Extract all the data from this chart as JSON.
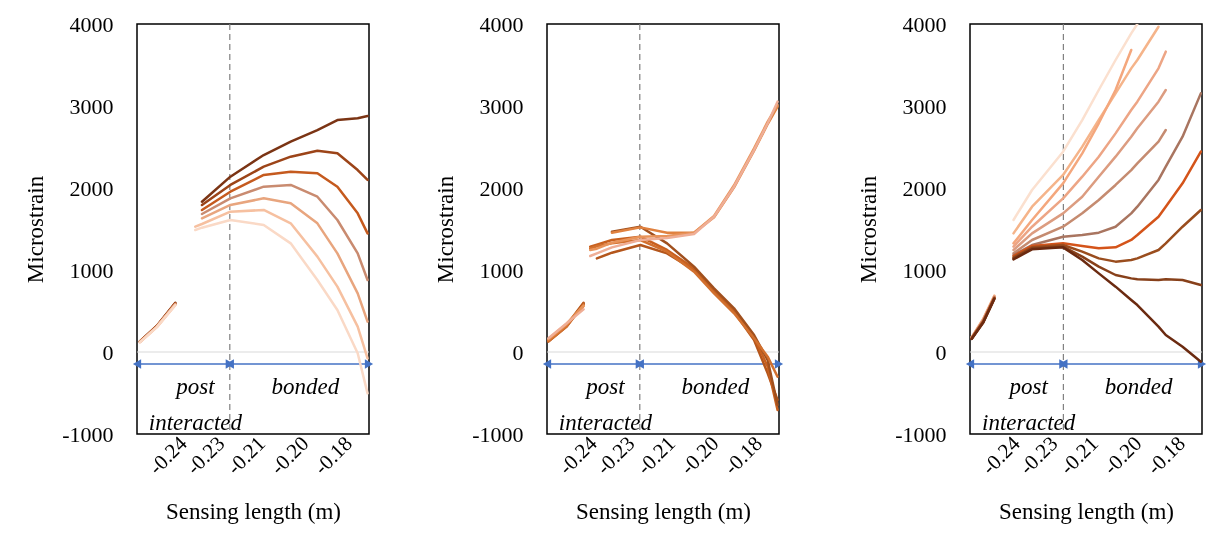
{
  "chart_data": [
    {
      "type": "line",
      "xlabel": "Sensing length (m)",
      "ylabel": "Microstrain",
      "line_style": "solid",
      "xlim": [
        -0.255,
        -0.175
      ],
      "xticks": [
        {
          "value": -0.239,
          "label": "-0.24"
        },
        {
          "value": -0.226,
          "label": "-0.23"
        },
        {
          "value": -0.212,
          "label": "-0.21"
        },
        {
          "value": -0.197,
          "label": "-0.20"
        },
        {
          "value": -0.182,
          "label": "-0.18"
        }
      ],
      "ylim": [
        -1000,
        4000
      ],
      "yticks": [
        -1000,
        0,
        1000,
        2000,
        3000,
        4000
      ],
      "ref_lines": [
        {
          "axis": "x",
          "value": -0.223,
          "color": "#808080",
          "line_style": "dashed"
        },
        {
          "axis": "y",
          "value": 0,
          "color": "#d9d9d9",
          "line_style": "solid"
        }
      ],
      "annotations": [
        "post interacted",
        "bonded"
      ],
      "x": [
        -0.254,
        -0.2482,
        -0.2418,
        -0.238,
        -0.2349,
        -0.2326,
        -0.2228,
        -0.2113,
        -0.202,
        -0.1928,
        -0.1859,
        -0.1789,
        -0.1755
      ],
      "series": [
        {
          "color": "#7b3414",
          "values": [
            130,
            318,
            600,
            null,
            null,
            1833,
            2138,
            2402,
            2565,
            2707,
            2829,
            2850,
            2878
          ]
        },
        {
          "color": "#9c4418",
          "values": [
            128,
            315,
            595,
            null,
            null,
            1793,
            2037,
            2260,
            2382,
            2455,
            2423,
            2219,
            2098
          ]
        },
        {
          "color": "#c55a1e",
          "values": [
            126,
            312,
            590,
            null,
            null,
            1732,
            1955,
            2159,
            2199,
            2179,
            2016,
            1691,
            1447
          ]
        },
        {
          "color": "#c98b70",
          "values": [
            124,
            309,
            585,
            null,
            null,
            1683,
            1874,
            2016,
            2037,
            1894,
            1610,
            1203,
            878
          ]
        },
        {
          "color": "#e8a57e",
          "values": [
            122,
            306,
            580,
            null,
            null,
            1630,
            1793,
            1874,
            1813,
            1569,
            1203,
            715,
            370
          ]
        },
        {
          "color": "#f6c0a0",
          "values": [
            120,
            303,
            575,
            null,
            1528,
            1561,
            1711,
            1732,
            1569,
            1163,
            797,
            309,
            -77
          ]
        },
        {
          "color": "#fad9c6",
          "values": [
            118,
            300,
            570,
            null,
            1488,
            1516,
            1610,
            1549,
            1325,
            878,
            512,
            -16,
            -504
          ]
        }
      ]
    },
    {
      "type": "line",
      "xlabel": "Sensing length (m)",
      "ylabel": "Microstrain",
      "line_style": "solid",
      "xlim": [
        -0.255,
        -0.175
      ],
      "xticks": [
        {
          "value": -0.239,
          "label": "-0.24"
        },
        {
          "value": -0.226,
          "label": "-0.23"
        },
        {
          "value": -0.212,
          "label": "-0.21"
        },
        {
          "value": -0.197,
          "label": "-0.20"
        },
        {
          "value": -0.182,
          "label": "-0.18"
        }
      ],
      "ylim": [
        -1000,
        4000
      ],
      "yticks": [
        -1000,
        0,
        1000,
        2000,
        3000,
        4000
      ],
      "ref_lines": [
        {
          "axis": "x",
          "value": -0.223,
          "color": "#808080",
          "line_style": "dashed"
        },
        {
          "axis": "y",
          "value": 0,
          "color": "#d9d9d9",
          "line_style": "solid"
        }
      ],
      "annotations": [
        "post interacted",
        "bonded"
      ],
      "x": [
        -0.2545,
        -0.2482,
        -0.2424,
        -0.2412,
        -0.2401,
        -0.2378,
        -0.2326,
        -0.2228,
        -0.2136,
        -0.2043,
        -0.1974,
        -0.1905,
        -0.1836,
        -0.1789,
        -0.1755
      ],
      "series": [
        {
          "color": "#b4561c",
          "values": [
            140,
            330,
            600,
            null,
            null,
            1142,
            1211,
            1305,
            1203,
            1000,
            736,
            492,
            146,
            -260,
            -585
          ]
        },
        {
          "color": "#c8601f",
          "values": [
            135,
            320,
            590,
            null,
            1285,
            1310,
            1366,
            1406,
            1244,
            1020,
            756,
            512,
            187,
            -179,
            -707
          ]
        },
        {
          "color": "#a0501e",
          "values": [
            130,
            315,
            585,
            null,
            null,
            null,
            1467,
            1528,
            1325,
            1041,
            776,
            533,
            207,
            -98,
            -646
          ]
        },
        {
          "color": "#d2702e",
          "values": [
            128,
            310,
            580,
            null,
            1264,
            1290,
            1325,
            1366,
            1224,
            980,
            715,
            472,
            167,
            -57,
            -301
          ]
        },
        {
          "color": "#e0813f",
          "values": [
            150,
            335,
            560,
            null,
            null,
            null,
            1455,
            1520,
            1455,
            1455,
            1642,
            2008,
            2455,
            2780,
            2992
          ]
        },
        {
          "color": "#e8935a",
          "values": [
            160,
            345,
            565,
            null,
            1244,
            1260,
            1333,
            1406,
            1415,
            1455,
            1659,
            2033,
            2484,
            2809,
            3012
          ]
        },
        {
          "color": "#efae96",
          "values": [
            167,
            350,
            520,
            null,
            1171,
            1203,
            1276,
            1366,
            1390,
            1439,
            1650,
            2016,
            2463,
            2789,
            3053
          ]
        }
      ]
    },
    {
      "type": "line",
      "xlabel": "Sensing length (m)",
      "ylabel": "Microstrain",
      "line_style": "solid",
      "xlim": [
        -0.255,
        -0.175
      ],
      "xticks": [
        {
          "value": -0.239,
          "label": "-0.24"
        },
        {
          "value": -0.226,
          "label": "-0.23"
        },
        {
          "value": -0.212,
          "label": "-0.21"
        },
        {
          "value": -0.197,
          "label": "-0.20"
        },
        {
          "value": -0.182,
          "label": "-0.18"
        }
      ],
      "ylim": [
        -1000,
        4000
      ],
      "yticks": [
        -1000,
        0,
        1000,
        2000,
        3000,
        4000
      ],
      "ref_lines": [
        {
          "axis": "x",
          "value": -0.2228,
          "color": "#808080",
          "line_style": "dashed"
        },
        {
          "axis": "y",
          "value": 0,
          "color": "#d9d9d9",
          "line_style": "solid"
        }
      ],
      "annotations": [
        "post interacted",
        "bonded"
      ],
      "x": [
        -0.2544,
        -0.2504,
        -0.2466,
        -0.243,
        -0.24,
        -0.2336,
        -0.2229,
        -0.2163,
        -0.2106,
        -0.2048,
        -0.1994,
        -0.1973,
        -0.19,
        -0.1875,
        -0.1817,
        -0.1754
      ],
      "series": [
        {
          "color": "#fbe0cf",
          "values": [
            180,
            410,
            690,
            null,
            1610,
            1976,
            2443,
            2829,
            3195,
            3561,
            3886,
            4000,
            null,
            null,
            null,
            null
          ]
        },
        {
          "color": "#f5b48a",
          "values": [
            178,
            405,
            685,
            null,
            1447,
            1772,
            2159,
            2504,
            2829,
            3154,
            3459,
            3561,
            3967,
            null,
            null,
            null
          ]
        },
        {
          "color": "#f4a77d",
          "values": [
            176,
            400,
            680,
            null,
            1325,
            1610,
            2057,
            2423,
            2789,
            3195,
            3683,
            null,
            null,
            null,
            null,
            null
          ]
        },
        {
          "color": "#eda585",
          "values": [
            174,
            395,
            676,
            null,
            1285,
            1528,
            1874,
            2138,
            2382,
            2666,
            2951,
            3053,
            3459,
            3663,
            null,
            null
          ]
        },
        {
          "color": "#dc9c80",
          "values": [
            172,
            390,
            672,
            null,
            1244,
            1447,
            1691,
            1894,
            2138,
            2382,
            2626,
            2728,
            3053,
            3195,
            null,
            null
          ]
        },
        {
          "color": "#c58b70",
          "values": [
            170,
            385,
            668,
            null,
            1203,
            1366,
            1528,
            1691,
            1854,
            2037,
            2219,
            2301,
            2565,
            2707,
            null,
            null
          ]
        },
        {
          "color": "#a97560",
          "values": [
            168,
            380,
            664,
            null,
            1183,
            1305,
            1406,
            1426,
            1455,
            1528,
            1691,
            1772,
            2098,
            2260,
            2626,
            3154
          ]
        },
        {
          "color": "#d4541a",
          "values": [
            166,
            375,
            660,
            null,
            1171,
            1293,
            1325,
            1293,
            1264,
            1276,
            1366,
            1426,
            1650,
            1772,
            2057,
            2443
          ]
        },
        {
          "color": "#9a4d1e",
          "values": [
            164,
            370,
            656,
            null,
            1154,
            1276,
            1305,
            1224,
            1142,
            1102,
            1122,
            1142,
            1244,
            1325,
            1528,
            1732
          ]
        },
        {
          "color": "#87401a",
          "values": [
            162,
            365,
            652,
            null,
            1142,
            1264,
            1285,
            1163,
            1041,
            939,
            898,
            886,
            878,
            886,
            878,
            817
          ]
        },
        {
          "color": "#6b2a10",
          "values": [
            160,
            360,
            648,
            null,
            1130,
            1252,
            1276,
            1122,
            959,
            797,
            634,
            573,
            309,
            207,
            65,
            -118
          ]
        }
      ]
    }
  ]
}
